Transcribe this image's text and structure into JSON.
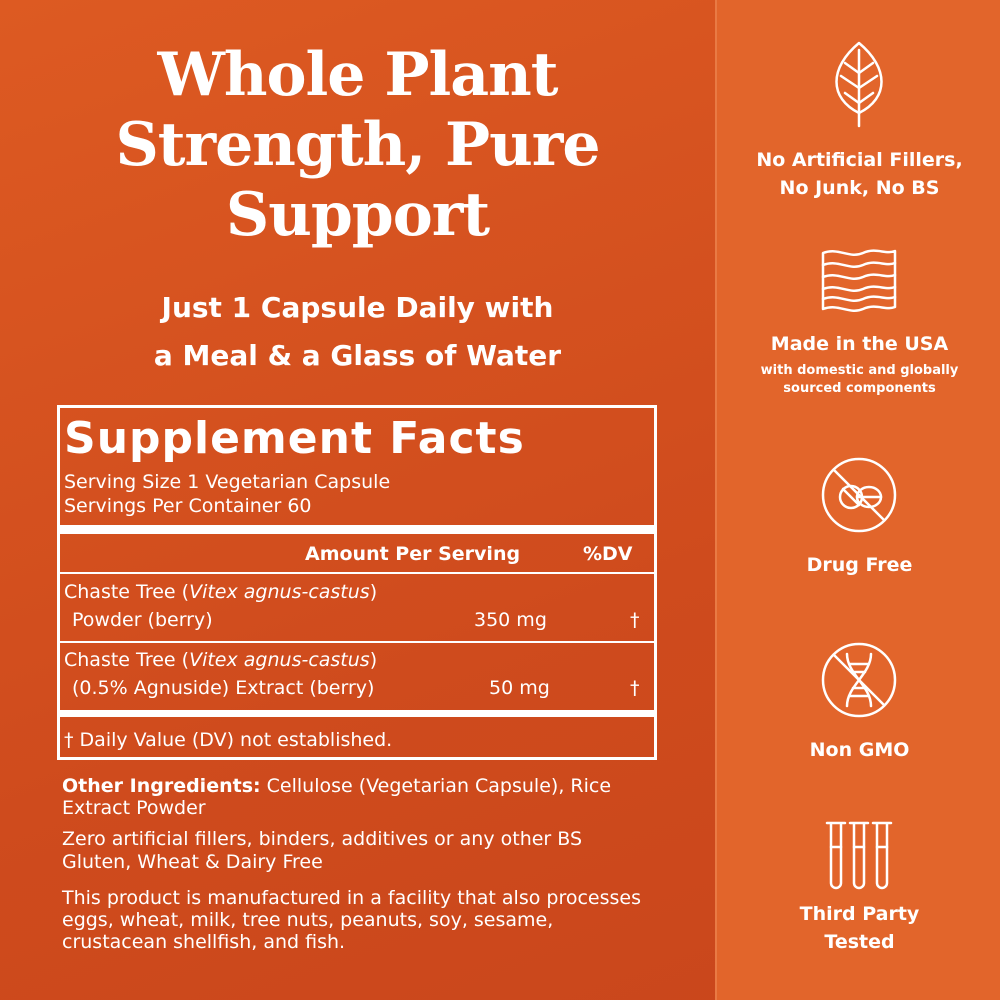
{
  "header": {
    "title_lines": [
      "Whole Plant",
      "Strength, Pure",
      "Support"
    ],
    "subtitle_lines": [
      "Just 1 Capsule Daily with",
      "a Meal & a Glass of Water"
    ]
  },
  "facts": {
    "title": "Supplement Facts",
    "serving_size": "Serving Size 1 Vegetarian Capsule",
    "servings_per_container": "Servings Per Container 60",
    "column_amount": "Amount Per Serving",
    "column_dv": "%DV",
    "rows": [
      {
        "name_before": "Chaste Tree (",
        "name_italic": "Vitex agnus-castus",
        "name_after": ")",
        "detail": "Powder (berry)",
        "amount": "350 mg",
        "dv": "†"
      },
      {
        "name_before": "Chaste Tree (",
        "name_italic": "Vitex agnus-castus",
        "name_after": ")",
        "detail": "(0.5% Agnuside) Extract (berry)",
        "amount": "50 mg",
        "dv": "†"
      }
    ],
    "footnote": "† Daily Value (DV) not established."
  },
  "other": {
    "label": "Other Ingredients:",
    "text": "Cellulose (Vegetarian Capsule), Rice Extract Powder",
    "notes": [
      "Zero artificial fillers, binders, additives or any other BS",
      "Gluten, Wheat & Dairy Free",
      "This product is manufactured in a facility that also processes eggs, wheat, milk, tree nuts, peanuts, soy, sesame, crustacean shellfish, and fish."
    ]
  },
  "badges": [
    {
      "lines": [
        "No Artificial Fillers,",
        "No Junk, No BS"
      ]
    },
    {
      "lines": [
        "Made in the USA"
      ],
      "sub_lines": [
        "with domestic and globally",
        "sourced components"
      ]
    },
    {
      "lines": [
        "Drug Free"
      ]
    },
    {
      "lines": [
        "Non GMO"
      ]
    },
    {
      "lines": [
        "Third Party",
        "Tested"
      ]
    }
  ]
}
